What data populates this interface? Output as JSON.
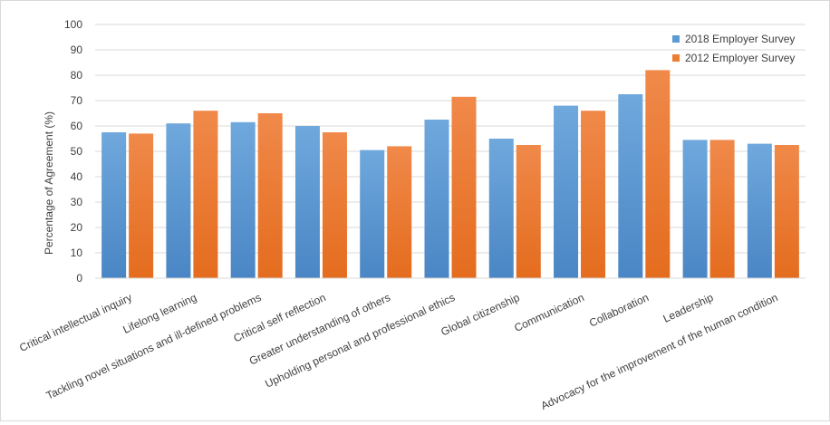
{
  "chart_data": {
    "type": "bar",
    "title": "",
    "xlabel": "",
    "ylabel": "Percentage of Agreement (%)",
    "ylim": [
      0,
      100
    ],
    "yticks": [
      0,
      10,
      20,
      30,
      40,
      50,
      60,
      70,
      80,
      90,
      100
    ],
    "grid": true,
    "legend_position": "top-right",
    "categories": [
      "Critical intellectual inquiry",
      "Lifelong learning",
      "Tackling novel situations and ill-defined problems",
      "Critical self reflection",
      "Greater understanding of others",
      "Upholding personal and professional ethics",
      "Global citizenship",
      "Communication",
      "Collaboration",
      "Leadership",
      "Advocacy for the improvement of the human condition"
    ],
    "series": [
      {
        "name": "2018 Employer Survey",
        "color": "#5b9bd5",
        "values": [
          57.5,
          61,
          61.5,
          60,
          50.5,
          62.5,
          55,
          68,
          72.5,
          54.5,
          53
        ]
      },
      {
        "name": "2012 Employer Survey",
        "color": "#ed7d31",
        "values": [
          57,
          66,
          65,
          57.5,
          52,
          71.5,
          52.5,
          66,
          82,
          54.5,
          52.5
        ]
      }
    ]
  }
}
